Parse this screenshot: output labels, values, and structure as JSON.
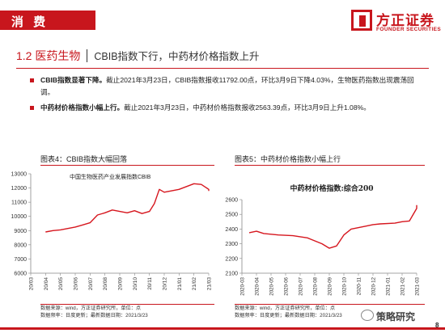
{
  "header": {
    "sector": "消 费",
    "logo_cn": "方正证券",
    "logo_en": "FOUNDER SECURITIES"
  },
  "section": {
    "number_title": "1.2 医药生物",
    "subtitle": "CBIB指数下行，中药材价格指数上升"
  },
  "bullets": [
    {
      "bold": "CBIB指数显著下降。",
      "text": "截止2021年3月23日，CBIB指数报收11792.00点，环比3月9日下降4.03%，生物医药指数出现震荡回调。"
    },
    {
      "bold": "中药材价格指数小幅上行。",
      "text": "截止2021年3月23日，中药材价格指数报收2563.39点，环比3月9日上升1.08%。"
    }
  ],
  "figures": [
    {
      "title": "图表4：CBIB指数大幅回落",
      "note_line1": "数据来源：wind，方正证券研究所，单位：点",
      "note_line2": "数据频率：日度更新；最新数据日期：2021/3/23"
    },
    {
      "title": "图表5：中药材价格指数小幅上行",
      "note_line1": "数据来源：wind，方正证券研究所，单位：点",
      "note_line2": "数据频率：日度更新；最新数据日期：2021/3/23"
    }
  ],
  "watermark": "策略研究",
  "page_number": "8",
  "colors": {
    "accent": "#c8161d",
    "line": "#d6161e"
  },
  "chart_data": [
    {
      "type": "line",
      "title": "中国生物医药产业发展指数CBIB",
      "xlabel": "",
      "ylabel": "",
      "ylim": [
        6000,
        13000
      ],
      "yticks": [
        6000,
        7000,
        8000,
        9000,
        10000,
        11000,
        12000,
        13000
      ],
      "xticks": [
        "20/03",
        "20/04",
        "20/05",
        "20/06",
        "20/07",
        "20/08",
        "20/09",
        "20/10",
        "20/11",
        "20/12",
        "21/01",
        "21/02",
        "21/03"
      ],
      "x": [
        "20/04",
        "20/04",
        "20/05",
        "20/05",
        "20/06",
        "20/06",
        "20/07",
        "20/07",
        "20/08",
        "20/08",
        "20/09",
        "20/09",
        "20/10",
        "20/10",
        "20/11",
        "20/11",
        "20/11",
        "20/12",
        "20/12",
        "21/01",
        "21/01",
        "21/02",
        "21/02",
        "21/03",
        "21/03"
      ],
      "y": [
        8900,
        9000,
        9050,
        9150,
        9250,
        9400,
        9550,
        10100,
        10250,
        10450,
        10350,
        10250,
        10400,
        10200,
        10350,
        10900,
        11900,
        11700,
        11800,
        11900,
        12100,
        12300,
        12250,
        11900,
        11792
      ],
      "grid": false,
      "legend": "none"
    },
    {
      "type": "line",
      "title": "中药材价格指数:综合200",
      "xlabel": "",
      "ylabel": "",
      "ylim": [
        2100,
        2600
      ],
      "yticks": [
        2100,
        2200,
        2300,
        2400,
        2500,
        2600
      ],
      "xticks": [
        "2020-03",
        "2020-04",
        "2020-05",
        "2020-06",
        "2020-07",
        "2020-08",
        "2020-09",
        "2020-10",
        "2020-11",
        "2020-12",
        "2021-01",
        "2021-02",
        "2021-03"
      ],
      "x": [
        "2020-03",
        "2020-04",
        "2020-04",
        "2020-05",
        "2020-06",
        "2020-07",
        "2020-08",
        "2020-09",
        "2020-09",
        "2020-10",
        "2020-10",
        "2020-11",
        "2020-12",
        "2020-12",
        "2021-01",
        "2021-02",
        "2021-02",
        "2021-03",
        "2021-03"
      ],
      "y": [
        2375,
        2385,
        2370,
        2360,
        2355,
        2340,
        2300,
        2270,
        2285,
        2360,
        2400,
        2420,
        2430,
        2435,
        2440,
        2450,
        2455,
        2540,
        2563.39
      ],
      "grid": false,
      "legend": "none"
    }
  ]
}
